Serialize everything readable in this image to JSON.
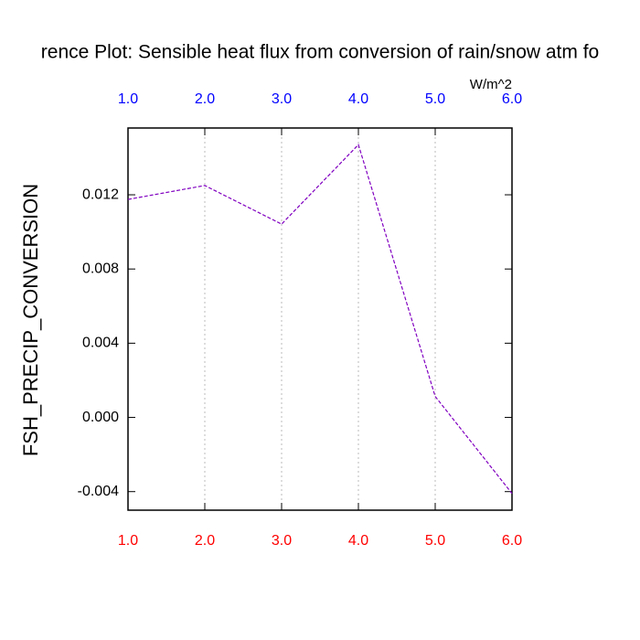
{
  "chart_data": {
    "type": "line",
    "title": "rence Plot: Sensible heat flux from conversion of rain/snow atm fo",
    "y_label": "FSH_PRECIP_CONVERSION",
    "units": "W/m^2",
    "x": [
      1,
      2,
      3,
      4,
      5,
      6
    ],
    "series": [
      {
        "color": "#8000c0",
        "values": [
          0.01175,
          0.0125,
          0.01042,
          0.0147,
          0.00113,
          -0.0041
        ]
      }
    ],
    "xlim": [
      1,
      6
    ],
    "xticks": [
      {
        "value": 1,
        "label": "1.0"
      },
      {
        "value": 2,
        "label": "2.0"
      },
      {
        "value": 3,
        "label": "3.0"
      },
      {
        "value": 4,
        "label": "4.0"
      },
      {
        "value": 5,
        "label": "5.0"
      },
      {
        "value": 6,
        "label": "6.0"
      }
    ],
    "ylim": [
      -0.005,
      0.0156
    ],
    "yticks": [
      -0.004,
      {
        "value": 0,
        "label": "0.000"
      },
      0.004,
      0.008,
      0.012
    ],
    "top_tick_color": "#0000ff",
    "bottom_tick_color": "#ff0000",
    "grid": "x"
  }
}
